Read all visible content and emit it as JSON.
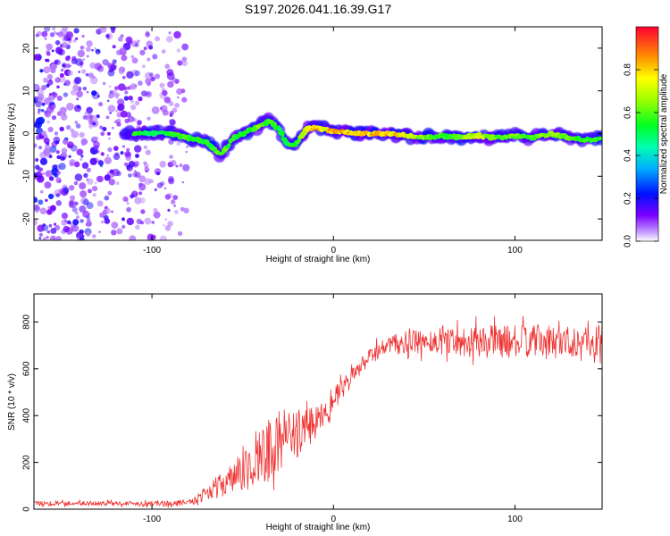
{
  "chart_data": [
    {
      "type": "heatmap",
      "title": "S197.2026.041.16.39.G17",
      "xlabel": "Height of straight line (km)",
      "ylabel": "Frequency (Hz)",
      "xlim": [
        -165,
        148
      ],
      "ylim": [
        -25,
        25
      ],
      "xticks": [
        -100,
        0,
        100
      ],
      "yticks": [
        -20,
        -10,
        0,
        10,
        20
      ],
      "xtick_labels": [
        "-100",
        "0",
        "100"
      ],
      "ytick_labels": [
        "-20",
        "-10",
        "0",
        "10",
        "20"
      ],
      "colorbar": {
        "label": "Normalized spectral amplitude",
        "range": [
          0,
          1
        ],
        "ticks": [
          0.0,
          0.2,
          0.4,
          0.6,
          0.8
        ],
        "tick_labels": [
          "0.0",
          "0.2",
          "0.4",
          "0.6",
          "0.8"
        ],
        "colormap": "rainbow"
      },
      "ridge": {
        "x": [
          -110,
          -100,
          -90,
          -80,
          -70,
          -62,
          -55,
          -50,
          -45,
          -40,
          -35,
          -30,
          -26,
          -22,
          -20,
          -15,
          -10,
          -5,
          0,
          10,
          20,
          30,
          40,
          50,
          60,
          70,
          80,
          90,
          100,
          110,
          120,
          130,
          140,
          148
        ],
        "frequency": [
          0,
          0,
          0,
          -1,
          -2,
          -5,
          -1,
          0,
          1,
          2,
          3,
          1,
          -2,
          -3,
          -2,
          1,
          1.5,
          1,
          0.5,
          0.3,
          0,
          0,
          -0.5,
          -1,
          -0.5,
          -1,
          -0.5,
          -1,
          -0.5,
          -1,
          0,
          -1,
          -1.5,
          -1
        ],
        "amplitude": [
          0.5,
          0.35,
          0.45,
          0.5,
          0.45,
          0.55,
          0.45,
          0.5,
          0.45,
          0.6,
          0.5,
          0.4,
          0.4,
          0.45,
          0.5,
          0.8,
          0.9,
          0.85,
          0.95,
          0.95,
          0.9,
          0.95,
          0.8,
          0.6,
          0.5,
          0.55,
          0.8,
          0.55,
          0.6,
          0.5,
          0.7,
          0.55,
          0.5,
          0.5
        ]
      },
      "noise_region_x": [
        -165,
        -80
      ]
    },
    {
      "type": "line",
      "xlabel": "Height of straight line (km)",
      "ylabel": "SNR (10 * v/v)",
      "xlim": [
        -165,
        148
      ],
      "ylim": [
        0,
        920
      ],
      "xticks": [
        -100,
        0,
        100
      ],
      "yticks": [
        0,
        200,
        400,
        600,
        800
      ],
      "xtick_labels": [
        "-100",
        "0",
        "100"
      ],
      "ytick_labels": [
        "0",
        "200",
        "400",
        "600",
        "800"
      ],
      "color": "#ef3333",
      "series": [
        {
          "name": "SNR",
          "x": [
            -165,
            -140,
            -110,
            -90,
            -80,
            -75,
            -70,
            -65,
            -60,
            -55,
            -50,
            -45,
            -40,
            -35,
            -30,
            -25,
            -20,
            -15,
            -10,
            -5,
            0,
            5,
            10,
            15,
            20,
            25,
            30,
            40,
            50,
            60,
            70,
            80,
            90,
            100,
            110,
            120,
            130,
            140,
            148
          ],
          "values": [
            25,
            25,
            25,
            25,
            30,
            45,
            70,
            95,
            110,
            130,
            160,
            190,
            220,
            250,
            280,
            300,
            320,
            350,
            380,
            430,
            470,
            510,
            560,
            610,
            650,
            680,
            700,
            710,
            715,
            720,
            720,
            715,
            720,
            715,
            720,
            715,
            720,
            715,
            720
          ],
          "spread": [
            10,
            10,
            10,
            12,
            12,
            20,
            30,
            40,
            55,
            70,
            90,
            110,
            130,
            130,
            120,
            110,
            100,
            80,
            70,
            60,
            50,
            45,
            40,
            35,
            35,
            40,
            40,
            50,
            55,
            60,
            65,
            70,
            70,
            70,
            70,
            70,
            70,
            70,
            70
          ]
        }
      ]
    }
  ]
}
